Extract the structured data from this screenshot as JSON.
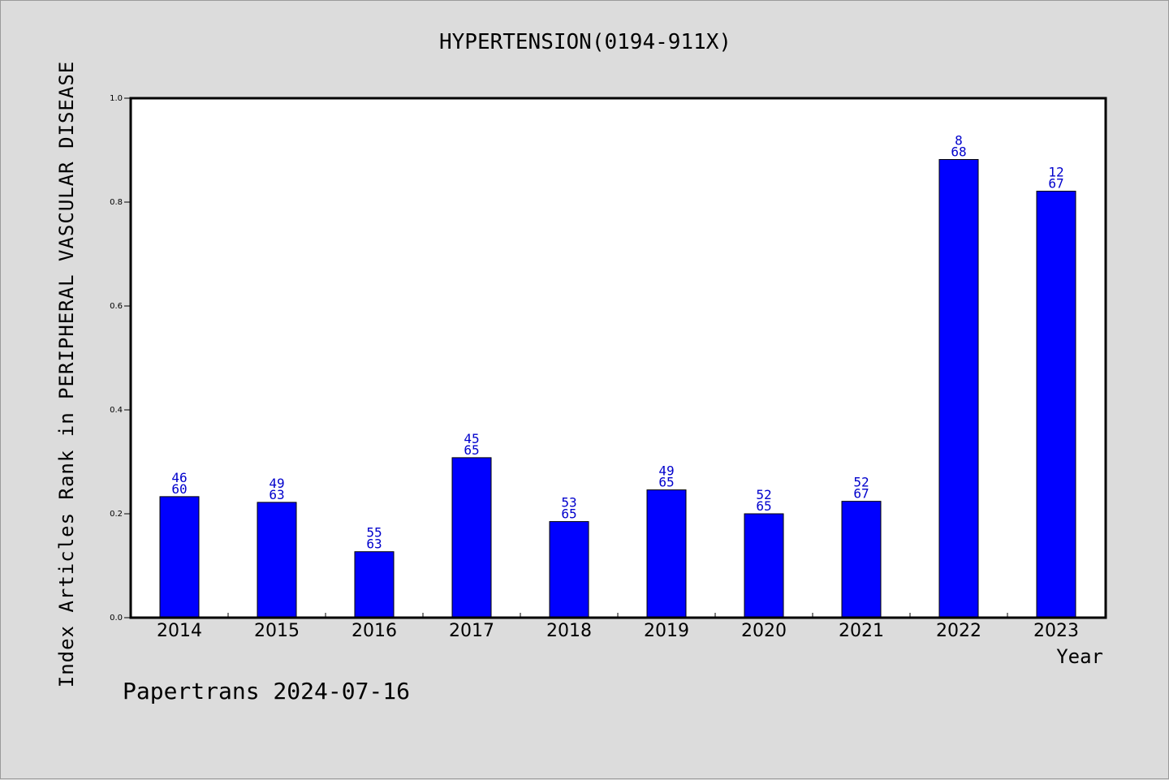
{
  "chart_data": {
    "type": "bar",
    "title": "HYPERTENSION(0194-911X)",
    "xlabel": "Year",
    "ylabel": "Index Articles Rank in PERIPHERAL VASCULAR DISEASE",
    "ylim": [
      0,
      1.0
    ],
    "yticks": [
      "0.0",
      "0.2",
      "0.4",
      "0.6",
      "0.8",
      "1.0"
    ],
    "grid": false,
    "bar_color": "#0000ff",
    "label_color": "#0000cc",
    "categories": [
      "2014",
      "2015",
      "2016",
      "2017",
      "2018",
      "2019",
      "2020",
      "2021",
      "2022",
      "2023"
    ],
    "values": [
      0.233,
      0.222,
      0.127,
      0.308,
      0.185,
      0.246,
      0.2,
      0.224,
      0.882,
      0.821
    ],
    "bar_labels": [
      [
        "46",
        "60"
      ],
      [
        "49",
        "63"
      ],
      [
        "55",
        "63"
      ],
      [
        "45",
        "65"
      ],
      [
        "53",
        "65"
      ],
      [
        "49",
        "65"
      ],
      [
        "52",
        "65"
      ],
      [
        "52",
        "67"
      ],
      [
        "8",
        "68"
      ],
      [
        "12",
        "67"
      ]
    ]
  },
  "footer": "Papertrans 2024-07-16"
}
